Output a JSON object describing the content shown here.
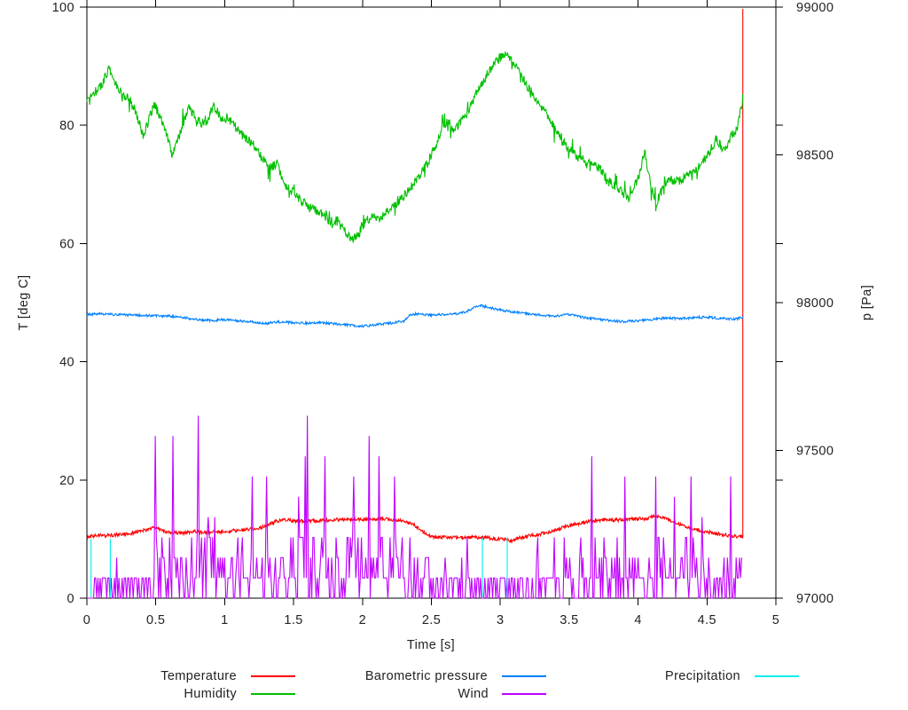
{
  "window": {
    "background": "#ffffff"
  },
  "chart_data": {
    "type": "line",
    "title": "",
    "xlabel": "Time [s]",
    "ylabel": "T [deg C]",
    "y2label": "p [Pa]",
    "xlim": [
      0,
      5
    ],
    "ylim": [
      0,
      100
    ],
    "y2lim": [
      97000,
      99000
    ],
    "grid": false,
    "legend_position": "below-plot, two rows",
    "axis_color": "#000000",
    "text_color": "#222222",
    "tick_style": "out, mirrored on top and right borders",
    "xticks": {
      "values": [
        0,
        0.5,
        1,
        1.5,
        2,
        2.5,
        3,
        3.5,
        4,
        4.5,
        5
      ],
      "labels": [
        "0",
        "0.5",
        "1",
        "1.5",
        "2",
        "2.5",
        "3",
        "3.5",
        "4",
        "4.5",
        "5"
      ]
    },
    "yticks": {
      "values": [
        0,
        20,
        40,
        60,
        80,
        100
      ],
      "labels": [
        "0",
        "20",
        "40",
        "60",
        "80",
        "100"
      ]
    },
    "y2ticks": {
      "values": [
        97000,
        97500,
        98000,
        98500,
        99000
      ],
      "labels": [
        "97000",
        "97500",
        "98000",
        "98500",
        "99000"
      ]
    },
    "t_end": 4.76,
    "sample_dt": 0.004,
    "noise_seed": 20240601,
    "series": [
      {
        "name": "Temperature",
        "color": "#ff0000",
        "axis": "y1",
        "kind": "noisy-line",
        "noise": 0.3,
        "end_spike_to": 99.7,
        "anchors": [
          [
            0,
            10.4
          ],
          [
            0.1,
            10.6
          ],
          [
            0.2,
            10.7
          ],
          [
            0.3,
            10.9
          ],
          [
            0.38,
            11.3
          ],
          [
            0.45,
            11.7
          ],
          [
            0.5,
            11.9
          ],
          [
            0.55,
            11.4
          ],
          [
            0.62,
            11.1
          ],
          [
            0.7,
            11.0
          ],
          [
            0.78,
            11.3
          ],
          [
            0.85,
            11.1
          ],
          [
            0.95,
            11.2
          ],
          [
            1.05,
            11.4
          ],
          [
            1.15,
            11.6
          ],
          [
            1.25,
            11.9
          ],
          [
            1.32,
            12.4
          ],
          [
            1.38,
            13.1
          ],
          [
            1.45,
            13.2
          ],
          [
            1.55,
            13.0
          ],
          [
            1.65,
            13.1
          ],
          [
            1.75,
            13.2
          ],
          [
            1.85,
            13.3
          ],
          [
            1.95,
            13.4
          ],
          [
            2.05,
            13.3
          ],
          [
            2.15,
            13.4
          ],
          [
            2.25,
            13.2
          ],
          [
            2.32,
            12.9
          ],
          [
            2.38,
            12.3
          ],
          [
            2.44,
            11.2
          ],
          [
            2.5,
            10.4
          ],
          [
            2.6,
            10.3
          ],
          [
            2.7,
            10.2
          ],
          [
            2.8,
            10.3
          ],
          [
            2.9,
            10.2
          ],
          [
            3.0,
            10.0
          ],
          [
            3.08,
            9.7
          ],
          [
            3.15,
            10.3
          ],
          [
            3.25,
            10.7
          ],
          [
            3.35,
            11.1
          ],
          [
            3.45,
            11.9
          ],
          [
            3.55,
            12.5
          ],
          [
            3.65,
            13.0
          ],
          [
            3.75,
            13.3
          ],
          [
            3.85,
            13.2
          ],
          [
            3.95,
            13.4
          ],
          [
            4.05,
            13.4
          ],
          [
            4.12,
            14.0
          ],
          [
            4.18,
            13.6
          ],
          [
            4.28,
            12.7
          ],
          [
            4.38,
            11.8
          ],
          [
            4.48,
            11.3
          ],
          [
            4.58,
            10.9
          ],
          [
            4.68,
            10.5
          ],
          [
            4.76,
            10.4
          ]
        ]
      },
      {
        "name": "Humidity",
        "color": "#00c000",
        "axis": "y1",
        "kind": "noisy-line",
        "noise": 0.8,
        "whisker": 4,
        "anchors": [
          [
            0,
            84.5
          ],
          [
            0.05,
            85.5
          ],
          [
            0.1,
            86.5
          ],
          [
            0.16,
            89.5
          ],
          [
            0.2,
            87.5
          ],
          [
            0.25,
            85.5
          ],
          [
            0.3,
            84.5
          ],
          [
            0.35,
            82.5
          ],
          [
            0.41,
            78.2
          ],
          [
            0.45,
            81
          ],
          [
            0.49,
            83.5
          ],
          [
            0.53,
            81.5
          ],
          [
            0.57,
            79.5
          ],
          [
            0.62,
            74.8
          ],
          [
            0.66,
            77.5
          ],
          [
            0.7,
            80.5
          ],
          [
            0.74,
            83
          ],
          [
            0.8,
            81
          ],
          [
            0.86,
            80
          ],
          [
            0.92,
            83.5
          ],
          [
            0.98,
            81
          ],
          [
            1.05,
            80.5
          ],
          [
            1.12,
            78.5
          ],
          [
            1.2,
            77
          ],
          [
            1.27,
            74.5
          ],
          [
            1.32,
            72.8
          ],
          [
            1.38,
            73.5
          ],
          [
            1.44,
            69.8
          ],
          [
            1.5,
            68.5
          ],
          [
            1.57,
            67
          ],
          [
            1.63,
            66
          ],
          [
            1.7,
            65.2
          ],
          [
            1.76,
            63.8
          ],
          [
            1.82,
            63.8
          ],
          [
            1.88,
            61.8
          ],
          [
            1.93,
            60.6
          ],
          [
            1.98,
            62
          ],
          [
            2.03,
            64
          ],
          [
            2.08,
            64.8
          ],
          [
            2.13,
            64.2
          ],
          [
            2.18,
            65.5
          ],
          [
            2.25,
            66.8
          ],
          [
            2.32,
            68.5
          ],
          [
            2.4,
            71
          ],
          [
            2.47,
            73.5
          ],
          [
            2.53,
            76.5
          ],
          [
            2.58,
            79.5
          ],
          [
            2.62,
            80.8
          ],
          [
            2.67,
            79
          ],
          [
            2.72,
            80.8
          ],
          [
            2.78,
            83
          ],
          [
            2.84,
            86
          ],
          [
            2.9,
            88.5
          ],
          [
            2.95,
            90
          ],
          [
            3.0,
            91.5
          ],
          [
            3.05,
            92.2
          ],
          [
            3.1,
            90.5
          ],
          [
            3.15,
            88.5
          ],
          [
            3.2,
            86.5
          ],
          [
            3.25,
            84.8
          ],
          [
            3.3,
            83.2
          ],
          [
            3.36,
            81
          ],
          [
            3.44,
            77.5
          ],
          [
            3.5,
            76
          ],
          [
            3.57,
            74.5
          ],
          [
            3.65,
            73.5
          ],
          [
            3.72,
            72.8
          ],
          [
            3.78,
            70.5
          ],
          [
            3.85,
            69.5
          ],
          [
            3.93,
            67.5
          ],
          [
            4.0,
            71
          ],
          [
            4.05,
            75.3
          ],
          [
            4.09,
            70
          ],
          [
            4.13,
            66.6
          ],
          [
            4.18,
            69.5
          ],
          [
            4.22,
            71
          ],
          [
            4.3,
            70.5
          ],
          [
            4.38,
            71.8
          ],
          [
            4.45,
            73.2
          ],
          [
            4.53,
            76
          ],
          [
            4.57,
            77.8
          ],
          [
            4.62,
            75.6
          ],
          [
            4.68,
            78.3
          ],
          [
            4.72,
            79.3
          ],
          [
            4.76,
            84.5
          ]
        ]
      },
      {
        "name": "Barometric pressure",
        "color": "#0080ff",
        "axis": "y2",
        "kind": "noisy-line",
        "noise": 4,
        "anchors": [
          [
            0,
            97960
          ],
          [
            0.1,
            97962
          ],
          [
            0.2,
            97960
          ],
          [
            0.3,
            97958
          ],
          [
            0.4,
            97957
          ],
          [
            0.5,
            97955
          ],
          [
            0.6,
            97955
          ],
          [
            0.7,
            97950
          ],
          [
            0.8,
            97942
          ],
          [
            0.9,
            97940
          ],
          [
            1.0,
            97942
          ],
          [
            1.1,
            97938
          ],
          [
            1.2,
            97935
          ],
          [
            1.3,
            97930
          ],
          [
            1.4,
            97935
          ],
          [
            1.5,
            97932
          ],
          [
            1.6,
            97930
          ],
          [
            1.7,
            97932
          ],
          [
            1.8,
            97928
          ],
          [
            1.9,
            97924
          ],
          [
            2.0,
            97920
          ],
          [
            2.1,
            97926
          ],
          [
            2.2,
            97930
          ],
          [
            2.3,
            97938
          ],
          [
            2.35,
            97960
          ],
          [
            2.4,
            97962
          ],
          [
            2.5,
            97958
          ],
          [
            2.6,
            97960
          ],
          [
            2.7,
            97963
          ],
          [
            2.75,
            97968
          ],
          [
            2.8,
            97982
          ],
          [
            2.85,
            97990
          ],
          [
            2.9,
            97986
          ],
          [
            2.95,
            97980
          ],
          [
            3.0,
            97975
          ],
          [
            3.1,
            97968
          ],
          [
            3.2,
            97962
          ],
          [
            3.3,
            97957
          ],
          [
            3.4,
            97954
          ],
          [
            3.5,
            97960
          ],
          [
            3.6,
            97950
          ],
          [
            3.7,
            97944
          ],
          [
            3.8,
            97939
          ],
          [
            3.9,
            97936
          ],
          [
            4.0,
            97939
          ],
          [
            4.1,
            97943
          ],
          [
            4.2,
            97948
          ],
          [
            4.3,
            97946
          ],
          [
            4.4,
            97949
          ],
          [
            4.5,
            97951
          ],
          [
            4.6,
            97947
          ],
          [
            4.7,
            97944
          ],
          [
            4.76,
            97950
          ]
        ]
      },
      {
        "name": "Wind",
        "color": "#c000ff",
        "axis": "y1",
        "kind": "spiky",
        "quantum": 3.43,
        "max": 34.3,
        "dt": 0.008,
        "segments": [
          [
            0,
            0.05,
            0.5,
            3.4,
            0
          ],
          [
            0.05,
            0.45,
            1.8,
            10.3,
            0.012
          ],
          [
            0.45,
            0.8,
            3.5,
            27.4,
            0.05
          ],
          [
            0.8,
            0.95,
            3.5,
            34.3,
            0.055
          ],
          [
            0.95,
            1.15,
            3.2,
            24,
            0.05
          ],
          [
            1.15,
            1.45,
            2.8,
            20.6,
            0.04
          ],
          [
            1.45,
            2.3,
            3.8,
            30.9,
            0.065
          ],
          [
            2.3,
            2.52,
            3.2,
            27.4,
            0.05
          ],
          [
            2.52,
            3.42,
            1.6,
            13.7,
            0.03
          ],
          [
            3.42,
            3.82,
            2.6,
            24,
            0.05
          ],
          [
            3.82,
            4.45,
            3.2,
            26,
            0.06
          ],
          [
            4.45,
            4.76,
            2.6,
            22,
            0.05
          ]
        ]
      },
      {
        "name": "Precipitation",
        "color": "#00eeee",
        "axis": "y1",
        "kind": "impulses",
        "spikes": [
          [
            0.03,
            10
          ],
          [
            0.17,
            10
          ],
          [
            2.87,
            10.3
          ],
          [
            3.05,
            10.3
          ]
        ]
      }
    ]
  }
}
